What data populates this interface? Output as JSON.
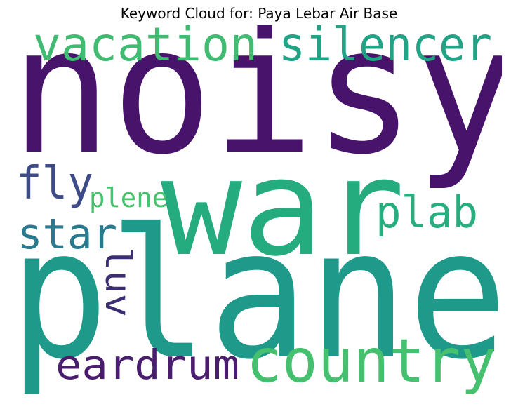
{
  "title": "Keyword Cloud for: Paya Lebar Air Base",
  "words": [
    {
      "text": "noisy",
      "color": "#48136b"
    },
    {
      "text": "war",
      "color": "#24ac7f"
    },
    {
      "text": "plane",
      "color": "#1f9a8a"
    },
    {
      "text": "vacation",
      "color": "#42bb72"
    },
    {
      "text": "silencer",
      "color": "#22a385"
    },
    {
      "text": "fly",
      "color": "#3d4b89"
    },
    {
      "text": "plene",
      "color": "#4ac16d"
    },
    {
      "text": "star",
      "color": "#297a8e"
    },
    {
      "text": "plab",
      "color": "#29ad7e"
    },
    {
      "text": "luv",
      "color": "#3d2e72"
    },
    {
      "text": "eardrum",
      "color": "#4a1d6f"
    },
    {
      "text": "country",
      "color": "#44c06e"
    }
  ]
}
